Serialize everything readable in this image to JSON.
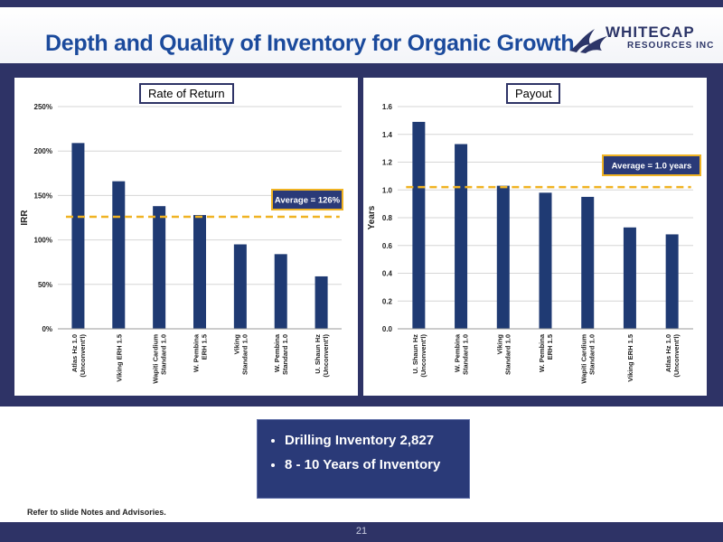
{
  "header": {
    "title": "Depth and Quality of Inventory for Organic Growth",
    "logo_line1": "WHITECAP",
    "logo_line2": "RESOURCES INC"
  },
  "colors": {
    "navy": "#2e3366",
    "title_blue": "#1b4a9c",
    "bar": "#1f3a73",
    "average_line": "#f0b323"
  },
  "chart_data": [
    {
      "type": "bar",
      "title": "Rate of Return",
      "ylabel": "IRR",
      "ylim": [
        0,
        250
      ],
      "yticks": [
        0,
        50,
        100,
        150,
        200,
        250
      ],
      "ytick_labels": [
        "0%",
        "50%",
        "100%",
        "150%",
        "200%",
        "250%"
      ],
      "categories": [
        [
          "Atlas Hz 1.0",
          "(Unconvent'l)"
        ],
        [
          "Viking ERH 1.5"
        ],
        [
          "Wapiti Cardium",
          "Standard 1.0"
        ],
        [
          "W. Pembina",
          "ERH 1.5"
        ],
        [
          "Viking",
          "Standard 1.0"
        ],
        [
          "W. Pembina",
          "Standard 1.0"
        ],
        [
          "U. Shaun Hz",
          "(Unconvent'l)"
        ]
      ],
      "values": [
        209,
        166,
        138,
        128,
        95,
        84,
        59
      ],
      "average": 126,
      "average_label": "Average = 126%",
      "grid": true
    },
    {
      "type": "bar",
      "title": "Payout",
      "ylabel": "Years",
      "ylim": [
        0,
        1.6
      ],
      "yticks": [
        0,
        0.2,
        0.4,
        0.6,
        0.8,
        1.0,
        1.2,
        1.4,
        1.6
      ],
      "ytick_labels": [
        "0.0",
        "0.2",
        "0.4",
        "0.6",
        "0.8",
        "1.0",
        "1.2",
        "1.4",
        "1.6"
      ],
      "categories": [
        [
          "U. Shaun Hz",
          "(Unconvent'l)"
        ],
        [
          "W. Pembina",
          "Standard 1.0"
        ],
        [
          "Viking",
          "Standard 1.0"
        ],
        [
          "W. Pembina",
          "ERH 1.5"
        ],
        [
          "Wapiti Cardium",
          "Standard 1.0"
        ],
        [
          "Viking ERH 1.5"
        ],
        [
          "Atlas Hz 1.0",
          "(Unconvent'l)"
        ]
      ],
      "values": [
        1.49,
        1.33,
        1.03,
        0.98,
        0.95,
        0.73,
        0.68
      ],
      "average": 1.02,
      "average_label": "Average = 1.0 years",
      "grid": true
    }
  ],
  "callout": {
    "items": [
      "Drilling Inventory 2,827",
      "8 - 10 Years of Inventory"
    ]
  },
  "footnote": "Refer to slide Notes and Advisories.",
  "page_number": "21"
}
